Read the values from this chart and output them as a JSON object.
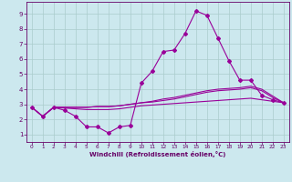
{
  "xlabel": "Windchill (Refroidissement éolien,°C)",
  "bg_color": "#cce8ee",
  "grid_color": "#aacccc",
  "line_color": "#990099",
  "x_ticks": [
    0,
    1,
    2,
    3,
    4,
    5,
    6,
    7,
    8,
    9,
    10,
    11,
    12,
    13,
    14,
    15,
    16,
    17,
    18,
    19,
    20,
    21,
    22,
    23
  ],
  "y_ticks": [
    1,
    2,
    3,
    4,
    5,
    6,
    7,
    8,
    9
  ],
  "xlim": [
    -0.5,
    23.5
  ],
  "ylim": [
    0.5,
    9.8
  ],
  "series": {
    "line1": {
      "x": [
        0,
        1,
        2,
        3,
        4,
        5,
        6,
        7,
        8,
        9,
        10,
        11,
        12,
        13,
        14,
        15,
        16,
        17,
        18,
        19,
        20,
        21,
        22,
        23
      ],
      "y": [
        2.8,
        2.2,
        2.8,
        2.6,
        2.2,
        1.5,
        1.5,
        1.1,
        1.5,
        1.6,
        4.4,
        5.2,
        6.5,
        6.6,
        7.7,
        9.2,
        8.9,
        7.4,
        5.9,
        4.6,
        4.6,
        3.6,
        3.3,
        3.1
      ]
    },
    "line2": {
      "x": [
        0,
        1,
        2,
        3,
        4,
        5,
        6,
        7,
        8,
        9,
        10,
        11,
        12,
        13,
        14,
        15,
        16,
        17,
        18,
        19,
        20,
        21,
        22,
        23
      ],
      "y": [
        2.8,
        2.2,
        2.8,
        2.8,
        2.8,
        2.8,
        2.85,
        2.85,
        2.9,
        3.0,
        3.1,
        3.2,
        3.35,
        3.45,
        3.6,
        3.75,
        3.9,
        4.0,
        4.05,
        4.1,
        4.2,
        4.0,
        3.55,
        3.1
      ]
    },
    "line3": {
      "x": [
        0,
        1,
        2,
        3,
        4,
        5,
        6,
        7,
        8,
        9,
        10,
        11,
        12,
        13,
        14,
        15,
        16,
        17,
        18,
        19,
        20,
        21,
        22,
        23
      ],
      "y": [
        2.8,
        2.2,
        2.8,
        2.8,
        2.8,
        2.8,
        2.85,
        2.85,
        2.9,
        3.0,
        3.1,
        3.15,
        3.25,
        3.35,
        3.5,
        3.65,
        3.8,
        3.9,
        3.95,
        4.0,
        4.1,
        3.9,
        3.45,
        3.1
      ]
    },
    "line4": {
      "x": [
        0,
        1,
        2,
        3,
        4,
        5,
        6,
        7,
        8,
        9,
        10,
        11,
        12,
        13,
        14,
        15,
        16,
        17,
        18,
        19,
        20,
        21,
        22,
        23
      ],
      "y": [
        2.8,
        2.2,
        2.8,
        2.75,
        2.7,
        2.65,
        2.65,
        2.65,
        2.7,
        2.8,
        2.9,
        2.95,
        3.0,
        3.05,
        3.1,
        3.15,
        3.2,
        3.25,
        3.3,
        3.35,
        3.4,
        3.3,
        3.2,
        3.1
      ]
    }
  }
}
